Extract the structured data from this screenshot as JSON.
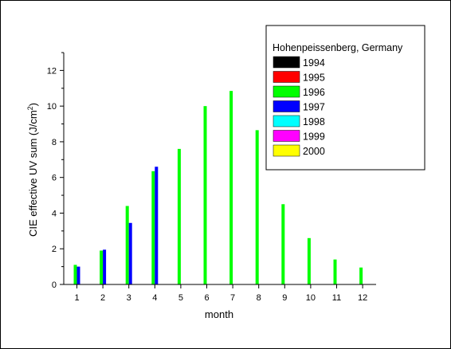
{
  "chart_data": {
    "type": "bar",
    "title": "",
    "xlabel": "month",
    "ylabel": "CIE effective UV sum (J/cm",
    "ylabel_sup": "2",
    "ylabel_end": ")",
    "categories": [
      "1",
      "2",
      "3",
      "4",
      "5",
      "6",
      "7",
      "8",
      "9",
      "10",
      "11",
      "12"
    ],
    "ylim": [
      0,
      13
    ],
    "yticks": [
      0,
      2,
      4,
      6,
      8,
      10,
      12
    ],
    "legend": {
      "title": "Hohenpeissenberg, Germany",
      "placement": "top-right",
      "entries": [
        {
          "name": "1994",
          "color": "#000000"
        },
        {
          "name": "1995",
          "color": "#ff0000"
        },
        {
          "name": "1996",
          "color": "#00ff00"
        },
        {
          "name": "1997",
          "color": "#0000ff"
        },
        {
          "name": "1998",
          "color": "#00ffff"
        },
        {
          "name": "1999",
          "color": "#ff00ff"
        },
        {
          "name": "2000",
          "color": "#ffff00"
        }
      ]
    },
    "series": [
      {
        "name": "1996",
        "color": "#00ff00",
        "values": [
          1.1,
          1.9,
          4.4,
          6.35,
          7.6,
          10.0,
          10.85,
          8.65,
          4.5,
          2.6,
          1.4,
          0.95
        ]
      },
      {
        "name": "1997",
        "color": "#0000ff",
        "values": [
          1.0,
          1.95,
          3.45,
          6.6,
          null,
          null,
          null,
          null,
          null,
          null,
          null,
          null
        ]
      }
    ]
  }
}
